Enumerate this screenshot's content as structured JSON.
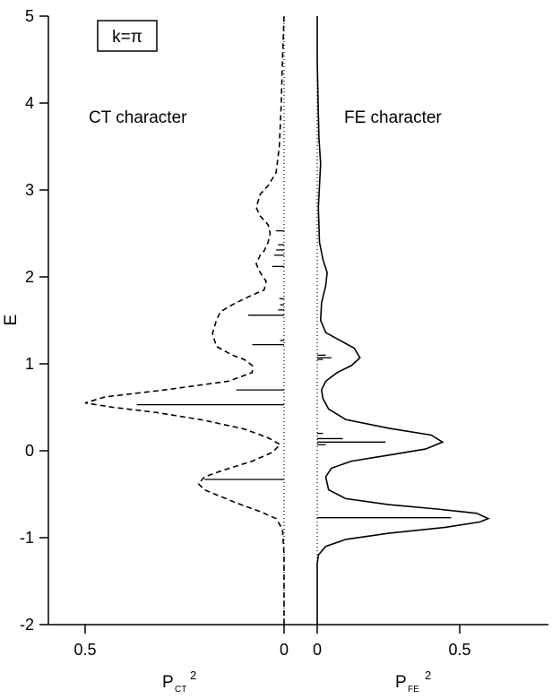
{
  "chart_data": {
    "type": "line",
    "ylabel": "E",
    "ylim": [
      -2,
      5
    ],
    "yticks": [
      -2,
      -1,
      0,
      1,
      2,
      3,
      4,
      5
    ],
    "grid": false,
    "legend": "none",
    "annotations": {
      "k_label": "k=π",
      "left_text": "CT character",
      "right_text": "FE character"
    },
    "panels": [
      {
        "id": "ct",
        "xlabel_main": "P",
        "xlabel_sub": "CT",
        "xlabel_sup": "2",
        "xlim": [
          0.55,
          0
        ],
        "xticks": [
          {
            "value": 0.5,
            "label": "0.5"
          },
          {
            "value": 0,
            "label": "0"
          }
        ],
        "series": [
          {
            "style": "dashed",
            "points": [
              [
                0,
                -2
              ],
              [
                0,
                -1.2
              ],
              [
                0.004,
                -0.9
              ],
              [
                0.02,
                -0.78
              ],
              [
                0.06,
                -0.7
              ],
              [
                0.12,
                -0.6
              ],
              [
                0.2,
                -0.45
              ],
              [
                0.215,
                -0.38
              ],
              [
                0.2,
                -0.3
              ],
              [
                0.15,
                -0.22
              ],
              [
                0.08,
                -0.12
              ],
              [
                0.03,
                -0.02
              ],
              [
                0.01,
                0.07
              ],
              [
                0.04,
                0.15
              ],
              [
                0.1,
                0.25
              ],
              [
                0.2,
                0.35
              ],
              [
                0.32,
                0.44
              ],
              [
                0.43,
                0.5
              ],
              [
                0.5,
                0.55
              ],
              [
                0.45,
                0.62
              ],
              [
                0.3,
                0.7
              ],
              [
                0.14,
                0.8
              ],
              [
                0.08,
                0.9
              ],
              [
                0.08,
                0.98
              ],
              [
                0.1,
                1.05
              ],
              [
                0.13,
                1.1
              ],
              [
                0.17,
                1.2
              ],
              [
                0.18,
                1.35
              ],
              [
                0.17,
                1.5
              ],
              [
                0.16,
                1.6
              ],
              [
                0.13,
                1.68
              ],
              [
                0.09,
                1.77
              ],
              [
                0.05,
                1.85
              ],
              [
                0.045,
                1.95
              ],
              [
                0.06,
                2.05
              ],
              [
                0.07,
                2.15
              ],
              [
                0.06,
                2.25
              ],
              [
                0.05,
                2.3
              ],
              [
                0.04,
                2.4
              ],
              [
                0.035,
                2.5
              ],
              [
                0.04,
                2.6
              ],
              [
                0.06,
                2.7
              ],
              [
                0.07,
                2.8
              ],
              [
                0.06,
                2.95
              ],
              [
                0.04,
                3.05
              ],
              [
                0.02,
                3.2
              ],
              [
                0.012,
                3.5
              ],
              [
                0.007,
                4
              ],
              [
                0.004,
                4.5
              ],
              [
                0,
                5
              ]
            ]
          }
        ],
        "sticks": [
          {
            "E": -0.33,
            "value": 0.2
          },
          {
            "E": 0.53,
            "value": 0.37
          },
          {
            "E": 0.7,
            "value": 0.12
          },
          {
            "E": 1.22,
            "value": 0.08
          },
          {
            "E": 1.27,
            "value": 0.01
          },
          {
            "E": 1.56,
            "value": 0.09
          },
          {
            "E": 1.62,
            "value": 0.015
          },
          {
            "E": 1.68,
            "value": 0.01
          },
          {
            "E": 1.75,
            "value": 0.012
          },
          {
            "E": 2.12,
            "value": 0.03
          },
          {
            "E": 2.25,
            "value": 0.025
          },
          {
            "E": 2.31,
            "value": 0.02
          },
          {
            "E": 2.37,
            "value": 0.015
          },
          {
            "E": 2.53,
            "value": 0.02
          }
        ]
      },
      {
        "id": "fe",
        "xlabel_main": "P",
        "xlabel_sub": "FE",
        "xlabel_sup": "2",
        "xlim": [
          0,
          0.75
        ],
        "xticks": [
          {
            "value": 0,
            "label": "0"
          },
          {
            "value": 0.5,
            "label": "0.5"
          }
        ],
        "series": [
          {
            "style": "solid",
            "points": [
              [
                0,
                -2
              ],
              [
                0,
                -1.3
              ],
              [
                0.004,
                -1.2
              ],
              [
                0.03,
                -1.1
              ],
              [
                0.1,
                -1.02
              ],
              [
                0.25,
                -0.95
              ],
              [
                0.45,
                -0.88
              ],
              [
                0.57,
                -0.82
              ],
              [
                0.6,
                -0.78
              ],
              [
                0.56,
                -0.72
              ],
              [
                0.42,
                -0.67
              ],
              [
                0.25,
                -0.62
              ],
              [
                0.1,
                -0.55
              ],
              [
                0.04,
                -0.45
              ],
              [
                0.03,
                -0.3
              ],
              [
                0.05,
                -0.2
              ],
              [
                0.12,
                -0.12
              ],
              [
                0.25,
                -0.05
              ],
              [
                0.38,
                0.02
              ],
              [
                0.44,
                0.1
              ],
              [
                0.4,
                0.18
              ],
              [
                0.25,
                0.26
              ],
              [
                0.1,
                0.36
              ],
              [
                0.04,
                0.48
              ],
              [
                0.02,
                0.6
              ],
              [
                0.015,
                0.7
              ],
              [
                0.03,
                0.8
              ],
              [
                0.07,
                0.9
              ],
              [
                0.12,
                0.98
              ],
              [
                0.15,
                1.07
              ],
              [
                0.13,
                1.18
              ],
              [
                0.08,
                1.27
              ],
              [
                0.03,
                1.36
              ],
              [
                0.012,
                1.5
              ],
              [
                0.015,
                1.7
              ],
              [
                0.03,
                1.9
              ],
              [
                0.035,
                2.05
              ],
              [
                0.02,
                2.2
              ],
              [
                0.008,
                2.4
              ],
              [
                0.004,
                2.8
              ],
              [
                0.008,
                3.05
              ],
              [
                0.012,
                3.3
              ],
              [
                0.006,
                3.6
              ],
              [
                0.003,
                4
              ],
              [
                0,
                4.5
              ],
              [
                0,
                5
              ]
            ]
          }
        ],
        "sticks": [
          {
            "E": -0.77,
            "value": 0.47
          },
          {
            "E": 0.1,
            "value": 0.24
          },
          {
            "E": 0.14,
            "value": 0.09
          },
          {
            "E": 0.2,
            "value": 0.02
          },
          {
            "E": 0.07,
            "value": 0.03
          },
          {
            "E": 1.07,
            "value": 0.05
          },
          {
            "E": 1.1,
            "value": 0.03
          },
          {
            "E": 1.05,
            "value": 0.02
          }
        ]
      }
    ]
  }
}
